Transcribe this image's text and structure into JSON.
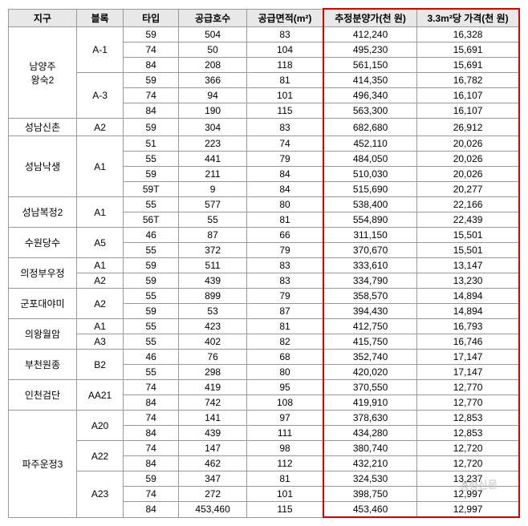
{
  "headers": {
    "district": "지구",
    "block": "블록",
    "type": "타입",
    "supply": "공급호수",
    "area": "공급면적(m²)",
    "price": "추정분양가(천 원)",
    "unit_price": "3.3m²당 가격(천 원)"
  },
  "colors": {
    "header_bg": "#e8e8e8",
    "border": "#999999",
    "red_box": "#dd0000",
    "text": "#000000",
    "watermark": "#aaaaaa"
  },
  "fonts": {
    "body_size": 12,
    "header_weight": "bold"
  },
  "watermark": "경향신문",
  "districts": [
    {
      "name": "남양주\n왕숙2",
      "rowspan": 6,
      "blocks": [
        {
          "name": "A-1",
          "rowspan": 3,
          "rows": [
            {
              "type": "59",
              "supply": "504",
              "area": "83",
              "price": "412,240",
              "unit": "16,328"
            },
            {
              "type": "74",
              "supply": "50",
              "area": "104",
              "price": "495,230",
              "unit": "15,691"
            },
            {
              "type": "84",
              "supply": "208",
              "area": "118",
              "price": "561,150",
              "unit": "15,691"
            }
          ]
        },
        {
          "name": "A-3",
          "rowspan": 3,
          "rows": [
            {
              "type": "59",
              "supply": "366",
              "area": "81",
              "price": "414,350",
              "unit": "16,782"
            },
            {
              "type": "74",
              "supply": "94",
              "area": "101",
              "price": "496,340",
              "unit": "16,107"
            },
            {
              "type": "84",
              "supply": "190",
              "area": "115",
              "price": "563,300",
              "unit": "16,107"
            }
          ]
        }
      ]
    },
    {
      "name": "성남신촌",
      "rowspan": 1,
      "blocks": [
        {
          "name": "A2",
          "rowspan": 1,
          "rows": [
            {
              "type": "59",
              "supply": "304",
              "area": "83",
              "price": "682,680",
              "unit": "26,912"
            }
          ]
        }
      ]
    },
    {
      "name": "성남낙생",
      "rowspan": 4,
      "blocks": [
        {
          "name": "A1",
          "rowspan": 4,
          "rows": [
            {
              "type": "51",
              "supply": "223",
              "area": "74",
              "price": "452,110",
              "unit": "20,026"
            },
            {
              "type": "55",
              "supply": "441",
              "area": "79",
              "price": "484,050",
              "unit": "20,026"
            },
            {
              "type": "59",
              "supply": "211",
              "area": "84",
              "price": "510,030",
              "unit": "20,026"
            },
            {
              "type": "59T",
              "supply": "9",
              "area": "84",
              "price": "515,690",
              "unit": "20,277"
            }
          ]
        }
      ]
    },
    {
      "name": "성남복정2",
      "rowspan": 2,
      "blocks": [
        {
          "name": "A1",
          "rowspan": 2,
          "rows": [
            {
              "type": "55",
              "supply": "577",
              "area": "80",
              "price": "538,400",
              "unit": "22,166"
            },
            {
              "type": "56T",
              "supply": "55",
              "area": "81",
              "price": "554,890",
              "unit": "22,439"
            }
          ]
        }
      ]
    },
    {
      "name": "수원당수",
      "rowspan": 2,
      "blocks": [
        {
          "name": "A5",
          "rowspan": 2,
          "rows": [
            {
              "type": "46",
              "supply": "87",
              "area": "66",
              "price": "311,150",
              "unit": "15,501"
            },
            {
              "type": "55",
              "supply": "372",
              "area": "79",
              "price": "370,670",
              "unit": "15,501"
            }
          ]
        }
      ]
    },
    {
      "name": "의정부우정",
      "rowspan": 2,
      "blocks": [
        {
          "name": "A1",
          "rowspan": 1,
          "rows": [
            {
              "type": "59",
              "supply": "511",
              "area": "83",
              "price": "333,610",
              "unit": "13,147"
            }
          ]
        },
        {
          "name": "A2",
          "rowspan": 1,
          "rows": [
            {
              "type": "59",
              "supply": "439",
              "area": "83",
              "price": "334,790",
              "unit": "13,230"
            }
          ]
        }
      ]
    },
    {
      "name": "군포대야미",
      "rowspan": 2,
      "blocks": [
        {
          "name": "A2",
          "rowspan": 2,
          "rows": [
            {
              "type": "55",
              "supply": "899",
              "area": "79",
              "price": "358,570",
              "unit": "14,894"
            },
            {
              "type": "59",
              "supply": "53",
              "area": "87",
              "price": "394,430",
              "unit": "14,894"
            }
          ]
        }
      ]
    },
    {
      "name": "의왕월암",
      "rowspan": 2,
      "blocks": [
        {
          "name": "A1",
          "rowspan": 1,
          "rows": [
            {
              "type": "55",
              "supply": "423",
              "area": "81",
              "price": "412,750",
              "unit": "16,793"
            }
          ]
        },
        {
          "name": "A3",
          "rowspan": 1,
          "rows": [
            {
              "type": "55",
              "supply": "402",
              "area": "82",
              "price": "415,750",
              "unit": "16,746"
            }
          ]
        }
      ]
    },
    {
      "name": "부천원종",
      "rowspan": 2,
      "blocks": [
        {
          "name": "B2",
          "rowspan": 2,
          "rows": [
            {
              "type": "46",
              "supply": "76",
              "area": "68",
              "price": "352,740",
              "unit": "17,147"
            },
            {
              "type": "55",
              "supply": "298",
              "area": "80",
              "price": "420,020",
              "unit": "17,147"
            }
          ]
        }
      ]
    },
    {
      "name": "인천검단",
      "rowspan": 2,
      "blocks": [
        {
          "name": "AA21",
          "rowspan": 2,
          "rows": [
            {
              "type": "74",
              "supply": "419",
              "area": "95",
              "price": "370,550",
              "unit": "12,770"
            },
            {
              "type": "84",
              "supply": "742",
              "area": "108",
              "price": "419,910",
              "unit": "12,770"
            }
          ]
        }
      ]
    },
    {
      "name": "파주운정3",
      "rowspan": 7,
      "blocks": [
        {
          "name": "A20",
          "rowspan": 2,
          "rows": [
            {
              "type": "74",
              "supply": "141",
              "area": "97",
              "price": "378,630",
              "unit": "12,853"
            },
            {
              "type": "84",
              "supply": "439",
              "area": "111",
              "price": "434,280",
              "unit": "12,853"
            }
          ]
        },
        {
          "name": "A22",
          "rowspan": 2,
          "rows": [
            {
              "type": "74",
              "supply": "147",
              "area": "98",
              "price": "380,740",
              "unit": "12,720"
            },
            {
              "type": "84",
              "supply": "462",
              "area": "112",
              "price": "432,210",
              "unit": "12,720"
            }
          ]
        },
        {
          "name": "A23",
          "rowspan": 3,
          "rows": [
            {
              "type": "59",
              "supply": "347",
              "area": "81",
              "price": "324,530",
              "unit": "13,237"
            },
            {
              "type": "74",
              "supply": "272",
              "area": "101",
              "price": "398,750",
              "unit": "12,997"
            },
            {
              "type": "84",
              "supply": "453,460",
              "area": "115",
              "price": "453,460",
              "unit": "12,997"
            }
          ]
        }
      ]
    }
  ]
}
